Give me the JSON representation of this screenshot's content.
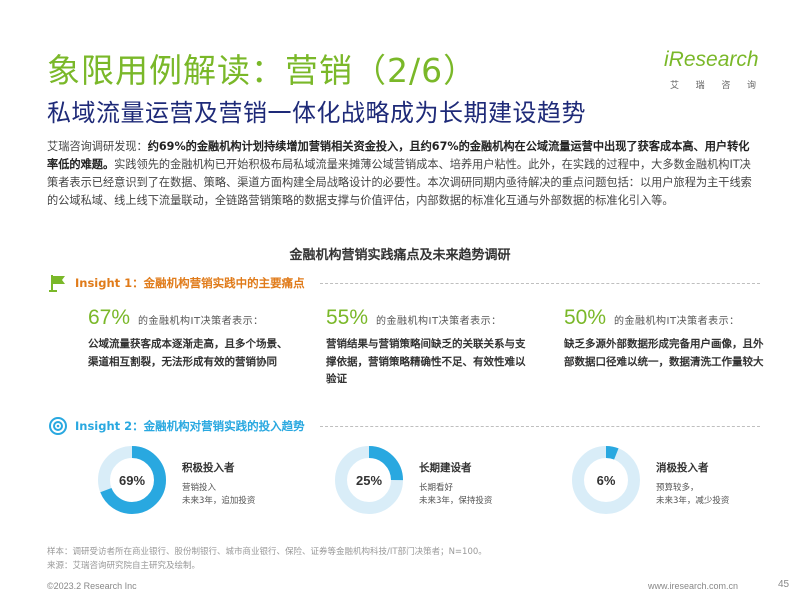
{
  "header": {
    "title": "象限用例解读：营销（2/6）",
    "subtitle": "私域流量运营及营销一体化战略成为长期建设趋势"
  },
  "logo": {
    "brand": "iResearch",
    "cn_chars": [
      "艾",
      "瑞",
      "咨",
      "询"
    ]
  },
  "intro": {
    "lead": "艾瑞咨询调研发现：",
    "bold": "约69%的金融机构计划持续增加营销相关资金投入，且约67%的金融机构在公域流量运营中出现了获客成本高、用户转化率低的难题。",
    "rest": "实践领先的金融机构已开始积极布局私域流量来摊薄公域营销成本、培养用户粘性。此外，在实践的过程中，大多数金融机构IT决策者表示已经意识到了在数据、策略、渠道方面构建全局战略设计的必要性。本次调研同期内亟待解决的重点问题包括：以用户旅程为主干线索的公域私域、线上线下流量联动，全链路营销策略的数据支撑与价值评估，内部数据的标准化互通与外部数据的标准化引入等。"
  },
  "section": {
    "title": "金融机构营销实践痛点及未来趋势调研"
  },
  "insight1": {
    "label": "Insight 1：金融机构营销实践中的主要痛点",
    "items": [
      {
        "pct": "67%",
        "desc": "的金融机构IT决策者表示：",
        "text": "公域流量获客成本逐渐走高，且多个场景、渠道相互割裂，无法形成有效的营销协同"
      },
      {
        "pct": "55%",
        "desc": "的金融机构IT决策者表示：",
        "text": "营销结果与营销策略间缺乏的关联关系与支撑依据，营销策略精确性不足、有效性难以验证"
      },
      {
        "pct": "50%",
        "desc": "的金融机构IT决策者表示：",
        "text": "缺乏多源外部数据形成完备用户画像，且外部数据口径难以统一，数据清洗工作量较大"
      }
    ]
  },
  "insight2": {
    "label": "Insight 2：金融机构对营销实践的投入趋势",
    "items": [
      {
        "pct_label": "69%",
        "value": 69,
        "label": "积极投入者",
        "note1": "营销投入",
        "note2": "未来3年，追加投资"
      },
      {
        "pct_label": "25%",
        "value": 25,
        "label": "长期建设者",
        "note1": "长期看好",
        "note2": "未来3年，保持投资"
      },
      {
        "pct_label": "6%",
        "value": 6,
        "label": "消极投入者",
        "note1": "预算较多，",
        "note2": "未来3年，减少投资"
      }
    ]
  },
  "notes": {
    "sample": "样本：调研受访者所在商业银行、股份制银行、城市商业银行、保险、证券等金融机构科技/IT部门决策者；N=100。",
    "source": "来源：艾瑞咨询研究院自主研究及绘制。"
  },
  "footer": {
    "copyright": "©2023.2 Research Inc",
    "url": "www.iresearch.com.cn",
    "page": "45"
  },
  "colors": {
    "green": "#7ab829",
    "navy": "#1e2a78",
    "blue": "#29a8e0",
    "donut_track": "#d9edf8"
  }
}
